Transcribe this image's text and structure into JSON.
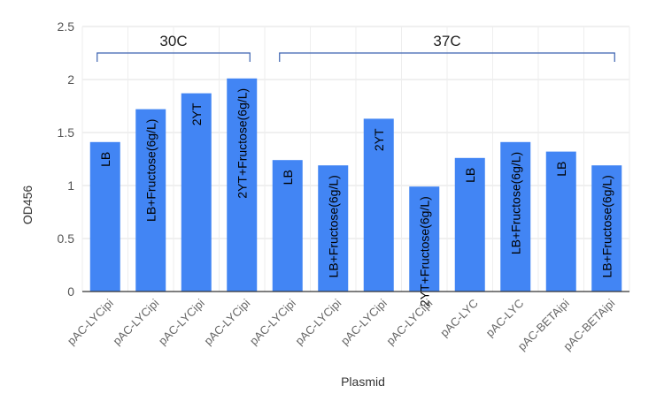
{
  "chart_data": {
    "type": "bar",
    "xlabel": "Plasmid",
    "ylabel": "OD456",
    "ylim": [
      0,
      2.5
    ],
    "yticks": [
      "0",
      "0.5",
      "1",
      "1.5",
      "2",
      "2.5"
    ],
    "grid": true,
    "color": "#4285f4",
    "categories": [
      "pAC-LYCipi",
      "pAC-LYCipi",
      "pAC-LYCipi",
      "pAC-LYCipi",
      "pAC-LYCipi",
      "pAC-LYCipi",
      "pAC-LYCipi",
      "pAC-LYCipi",
      "pAC-LYC",
      "pAC-LYC",
      "pAC-BETAipi",
      "pAC-BETAipi"
    ],
    "values": [
      1.41,
      1.72,
      1.87,
      2.01,
      1.24,
      1.19,
      1.63,
      0.99,
      1.26,
      1.41,
      1.32,
      1.19
    ],
    "bar_labels": [
      "LB",
      "LB+Fructose(6g/L)",
      "2YT",
      "2YT+Fructose(6g/L)",
      "LB",
      "LB+Fructose(6g/L)",
      "2YT",
      "2YT+Fructose(6g/L)",
      "LB",
      "LB+Fructose(6g/L)",
      "LB",
      "LB+Fructose(6g/L)"
    ],
    "groups": [
      {
        "label": "30C",
        "start": 0,
        "end": 3
      },
      {
        "label": "37C",
        "start": 4,
        "end": 11
      }
    ]
  }
}
